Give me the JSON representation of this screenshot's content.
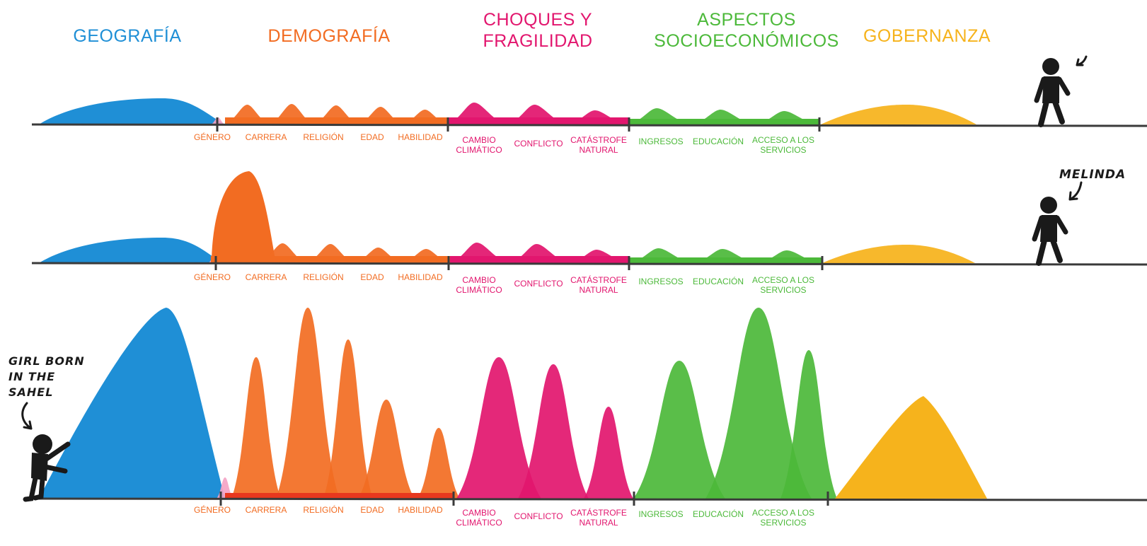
{
  "colors": {
    "geografia": "#1f8fd6",
    "genero": "#f4a3c4",
    "demografia": "#f26c22",
    "choques": "#e2166e",
    "socio": "#4cb93a",
    "gobernanza": "#f6b31c",
    "line": "#3a3a3a"
  },
  "categories": {
    "geografia": "GEOGRAFÍA",
    "demografia": "DEMOGRAFÍA",
    "choques": "CHOQUES Y\nFRAGILIDAD",
    "socio": "ASPECTOS\nSOCIOECONÓMICOS",
    "gobernanza": "GOBERNANZA"
  },
  "labels": {
    "genero": "GÉNERO",
    "carrera": "CARRERA",
    "religion": "RELIGIÓN",
    "edad": "EDAD",
    "habilidad": "HABILIDAD",
    "cambio": "CAMBIO\nCLIMÁTICO",
    "conflicto": "CONFLICTO",
    "catastrofe": "CATÁSTROFE\nNATURAL",
    "ingresos": "INGRESOS",
    "educacion": "EDUCACIÓN",
    "acceso": "ACCESO A LOS\nSERVICIOS"
  },
  "people": {
    "melinda": "MELINDA",
    "girl": "GIRL BORN\nIN THE\nSAHEL"
  },
  "rows": [
    {
      "name": "row-1",
      "heights": {
        "geografia": 37,
        "genero": 10,
        "carrera": [
          28,
          29,
          27,
          25,
          21
        ],
        "choques": [
          31,
          28,
          20
        ],
        "socio": [
          23,
          21,
          19
        ],
        "gobernanza": 28
      }
    },
    {
      "name": "row-2",
      "heights": {
        "geografia": 36,
        "genero": 12,
        "carrera": [
          130,
          28,
          27,
          22,
          20
        ],
        "choques": [
          29,
          27,
          19
        ],
        "socio": [
          21,
          20,
          18
        ],
        "gobernanza": 26
      }
    },
    {
      "name": "row-3",
      "heights": {
        "geografia": 270,
        "genero": 30,
        "carrera": [
          200,
          270,
          225,
          140,
          100
        ],
        "choques": [
          200,
          190,
          130
        ],
        "socio": [
          195,
          270,
          210
        ],
        "gobernanza": 145
      }
    }
  ]
}
